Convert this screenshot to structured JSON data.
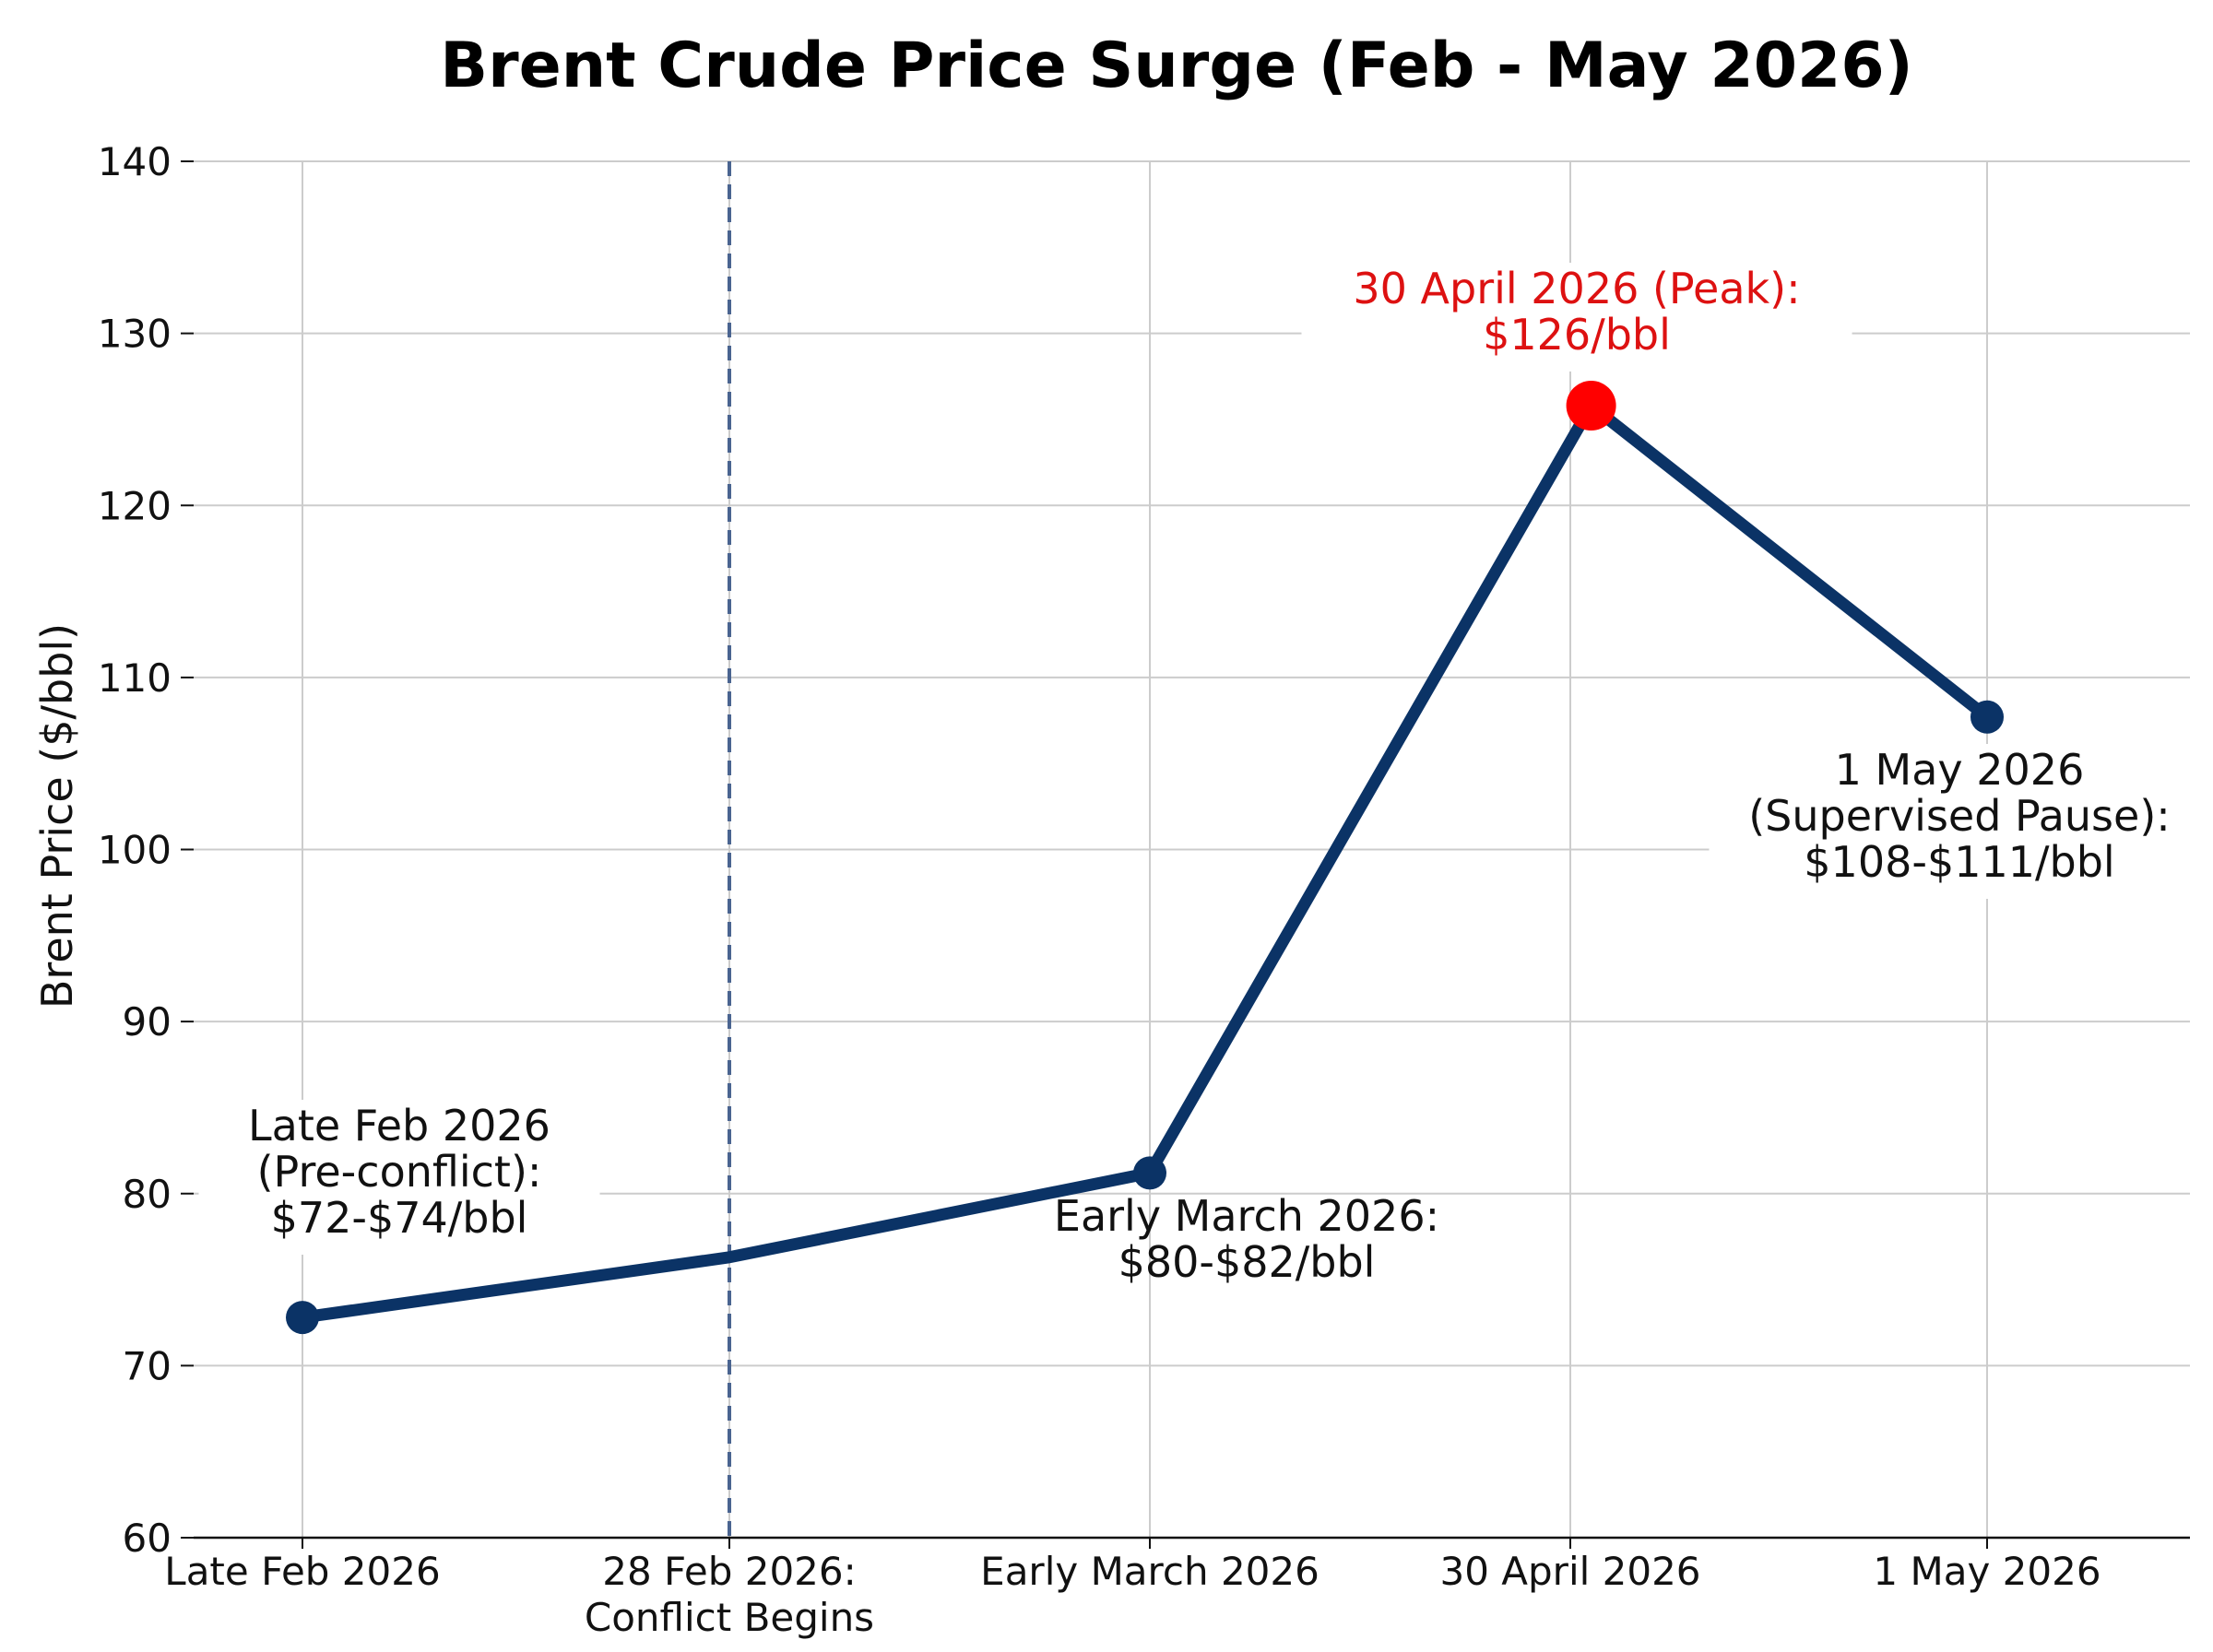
{
  "chart_data": {
    "type": "line",
    "title": "Brent Crude Price Surge (Feb - May 2026)",
    "xlabel": "",
    "ylabel": "Brent Price ($/bbl)",
    "ylim": [
      60,
      140
    ],
    "y_ticks": [
      60,
      70,
      80,
      90,
      100,
      110,
      120,
      130,
      140
    ],
    "grid": true,
    "categories": [
      "Late Feb 2026",
      "28 Feb 2026:\nConflict Begins",
      "Early March 2026",
      "30 April 2026",
      "1 May 2026"
    ],
    "x_positions": [
      0,
      1,
      2,
      3,
      4
    ],
    "series": [
      {
        "color": "#0b3366",
        "points": [
          {
            "x": 0,
            "y": 72.8,
            "marker": true
          },
          {
            "x": 1,
            "y": 76.3,
            "marker": false
          },
          {
            "x": 2,
            "y": 81.2,
            "marker": true
          },
          {
            "x": 3.05,
            "y": 125.8,
            "marker": true,
            "highlight": true
          },
          {
            "x": 4,
            "y": 107.7,
            "marker": true
          }
        ]
      }
    ],
    "highlight_color": "#ff0000",
    "event_line": {
      "x": 1,
      "color": "#4a6490",
      "style": "dashed"
    },
    "annotations": [
      {
        "lines": [
          "Late Feb 2026",
          "(Pre-conflict):",
          "$72-$74/bbl"
        ],
        "color": "#111111"
      },
      {
        "lines": [
          "Early March 2026:",
          "$80-$82/bbl"
        ],
        "color": "#111111"
      },
      {
        "lines": [
          "30 April 2026 (Peak):",
          "$126/bbl"
        ],
        "color": "#dd1111"
      },
      {
        "lines": [
          "1 May 2026",
          "(Supervised Pause):",
          "$108-$111/bbl"
        ],
        "color": "#111111"
      }
    ]
  }
}
